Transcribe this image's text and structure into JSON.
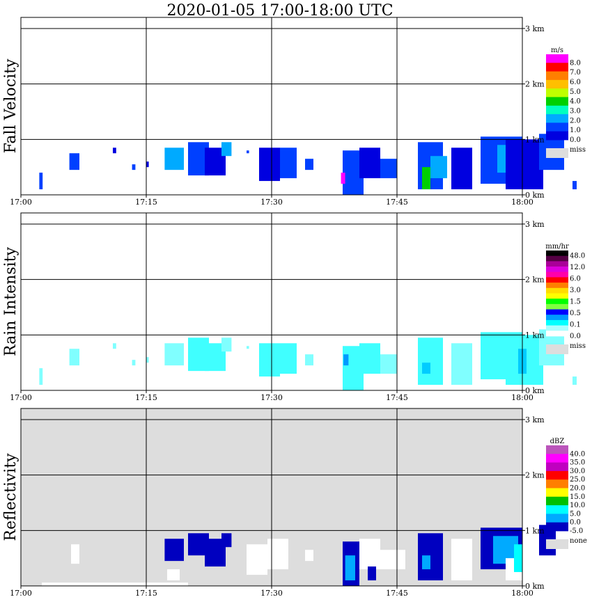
{
  "title": "2020-01-05   17:00-18:00 UTC",
  "time_ticks": [
    "17:00",
    "17:15",
    "17:30",
    "17:45",
    "18:00"
  ],
  "height_ticks": [
    "0 km",
    "1 km",
    "2 km",
    "3 km"
  ],
  "chart_data": [
    {
      "type": "heatmap",
      "ylabel": "Fall Velocity",
      "background": "white",
      "x_range": [
        "17:00",
        "18:00"
      ],
      "y_range_km": [
        0,
        3.0
      ],
      "grid": true,
      "legend": {
        "unit": "m/s",
        "labels": [
          "8.0",
          "7.0",
          "6.0",
          "5.0",
          "4.0",
          "3.0",
          "2.0",
          "1.0",
          "0.0"
        ],
        "colors": [
          "#ff00ff",
          "#ff0000",
          "#ff7f00",
          "#ffbf00",
          "#c0ff00",
          "#00d000",
          "#00ffc0",
          "#00aaff",
          "#0040ff",
          "#0000e0"
        ],
        "miss_label": "miss",
        "miss_color": "#dddddd"
      },
      "echoes": [
        {
          "t0": 2.2,
          "t1": 2.6,
          "h0": 0.1,
          "h1": 0.4,
          "color": "#0040ff"
        },
        {
          "t0": 5.8,
          "t1": 7.0,
          "h0": 0.45,
          "h1": 0.75,
          "color": "#0040ff"
        },
        {
          "t0": 11.0,
          "t1": 11.4,
          "h0": 0.75,
          "h1": 0.85,
          "color": "#0000e0"
        },
        {
          "t0": 13.3,
          "t1": 13.7,
          "h0": 0.45,
          "h1": 0.55,
          "color": "#0040ff"
        },
        {
          "t0": 15.0,
          "t1": 15.3,
          "h0": 0.5,
          "h1": 0.6,
          "color": "#0000e0"
        },
        {
          "t0": 17.2,
          "t1": 19.5,
          "h0": 0.45,
          "h1": 0.85,
          "color": "#00aaff"
        },
        {
          "t0": 20.0,
          "t1": 22.5,
          "h0": 0.35,
          "h1": 0.95,
          "color": "#0040ff"
        },
        {
          "t0": 22.0,
          "t1": 24.5,
          "h0": 0.35,
          "h1": 0.85,
          "color": "#0000e0"
        },
        {
          "t0": 24.0,
          "t1": 25.2,
          "h0": 0.7,
          "h1": 0.95,
          "color": "#00aaff"
        },
        {
          "t0": 27.0,
          "t1": 27.3,
          "h0": 0.75,
          "h1": 0.8,
          "color": "#0040ff"
        },
        {
          "t0": 28.5,
          "t1": 31.0,
          "h0": 0.25,
          "h1": 0.85,
          "color": "#0000e0"
        },
        {
          "t0": 31.0,
          "t1": 33.0,
          "h0": 0.3,
          "h1": 0.85,
          "color": "#0040ff"
        },
        {
          "t0": 34.0,
          "t1": 35.0,
          "h0": 0.45,
          "h1": 0.65,
          "color": "#0040ff"
        },
        {
          "t0": 38.5,
          "t1": 41.0,
          "h0": 0.0,
          "h1": 0.8,
          "color": "#0040ff"
        },
        {
          "t0": 38.3,
          "t1": 38.8,
          "h0": 0.2,
          "h1": 0.4,
          "color": "#ff00ff"
        },
        {
          "t0": 40.5,
          "t1": 43.0,
          "h0": 0.3,
          "h1": 0.85,
          "color": "#0000e0"
        },
        {
          "t0": 43.0,
          "t1": 45.0,
          "h0": 0.3,
          "h1": 0.65,
          "color": "#0040ff"
        },
        {
          "t0": 47.5,
          "t1": 50.5,
          "h0": 0.1,
          "h1": 0.95,
          "color": "#0040ff"
        },
        {
          "t0": 48.0,
          "t1": 49.0,
          "h0": 0.1,
          "h1": 0.5,
          "color": "#00d000"
        },
        {
          "t0": 49.0,
          "t1": 51.0,
          "h0": 0.3,
          "h1": 0.7,
          "color": "#00aaff"
        },
        {
          "t0": 51.5,
          "t1": 54.0,
          "h0": 0.1,
          "h1": 0.85,
          "color": "#0000e0"
        },
        {
          "t0": 55.0,
          "t1": 60.0,
          "h0": 0.2,
          "h1": 1.05,
          "color": "#0040ff"
        },
        {
          "t0": 57.0,
          "t1": 59.0,
          "h0": 0.4,
          "h1": 0.9,
          "color": "#00aaff"
        },
        {
          "t0": 58.0,
          "t1": 62.5,
          "h0": 0.1,
          "h1": 1.0,
          "color": "#0000e0"
        },
        {
          "t0": 62.0,
          "t1": 65.0,
          "h0": 0.45,
          "h1": 1.1,
          "color": "#0040ff"
        },
        {
          "t0": 66.0,
          "t1": 66.5,
          "h0": 0.1,
          "h1": 0.25,
          "color": "#0040ff"
        },
        {
          "t0": 71.5,
          "t1": 72.0,
          "h0": 0.45,
          "h1": 0.55,
          "color": "#00aaff"
        },
        {
          "t0": 74.5,
          "t1": 75.2,
          "h0": 0.05,
          "h1": 0.6,
          "color": "#0040ff"
        }
      ]
    },
    {
      "type": "heatmap",
      "ylabel": "Rain Intensity",
      "background": "white",
      "x_range": [
        "17:00",
        "18:00"
      ],
      "y_range_km": [
        0,
        3.0
      ],
      "grid": true,
      "legend": {
        "unit": "mm/hr",
        "labels": [
          "48.0",
          "12.0",
          "6.0",
          "3.0",
          "1.5",
          "0.5",
          "0.1",
          "0.0"
        ],
        "colors": [
          "#000000",
          "#550044",
          "#aa0099",
          "#dd00dd",
          "#ff00aa",
          "#ff0000",
          "#ff7f00",
          "#ffdd00",
          "#ffff00",
          "#00ff00",
          "#80ff40",
          "#0000ff",
          "#0099ff",
          "#00ffff",
          "#aaffff",
          "#ffffff"
        ],
        "miss_label": "miss",
        "miss_color": "#dddddd"
      },
      "echoes": [
        {
          "t0": 2.2,
          "t1": 2.6,
          "h0": 0.1,
          "h1": 0.4,
          "color": "#80ffff"
        },
        {
          "t0": 5.8,
          "t1": 7.0,
          "h0": 0.45,
          "h1": 0.75,
          "color": "#80ffff"
        },
        {
          "t0": 11.0,
          "t1": 11.4,
          "h0": 0.75,
          "h1": 0.85,
          "color": "#80ffff"
        },
        {
          "t0": 13.3,
          "t1": 13.7,
          "h0": 0.45,
          "h1": 0.55,
          "color": "#80ffff"
        },
        {
          "t0": 15.0,
          "t1": 15.3,
          "h0": 0.5,
          "h1": 0.6,
          "color": "#80ffff"
        },
        {
          "t0": 17.2,
          "t1": 19.5,
          "h0": 0.45,
          "h1": 0.85,
          "color": "#80ffff"
        },
        {
          "t0": 20.0,
          "t1": 22.5,
          "h0": 0.35,
          "h1": 0.95,
          "color": "#40ffff"
        },
        {
          "t0": 22.0,
          "t1": 24.5,
          "h0": 0.35,
          "h1": 0.85,
          "color": "#40ffff"
        },
        {
          "t0": 24.0,
          "t1": 25.2,
          "h0": 0.7,
          "h1": 0.95,
          "color": "#80ffff"
        },
        {
          "t0": 27.0,
          "t1": 27.3,
          "h0": 0.75,
          "h1": 0.8,
          "color": "#80ffff"
        },
        {
          "t0": 28.5,
          "t1": 31.0,
          "h0": 0.25,
          "h1": 0.85,
          "color": "#40ffff"
        },
        {
          "t0": 31.0,
          "t1": 33.0,
          "h0": 0.3,
          "h1": 0.85,
          "color": "#40ffff"
        },
        {
          "t0": 34.0,
          "t1": 35.0,
          "h0": 0.45,
          "h1": 0.65,
          "color": "#80ffff"
        },
        {
          "t0": 38.5,
          "t1": 41.0,
          "h0": 0.0,
          "h1": 0.8,
          "color": "#40ffff"
        },
        {
          "t0": 38.6,
          "t1": 39.2,
          "h0": 0.45,
          "h1": 0.65,
          "color": "#0099ff"
        },
        {
          "t0": 40.5,
          "t1": 43.0,
          "h0": 0.3,
          "h1": 0.85,
          "color": "#40ffff"
        },
        {
          "t0": 43.0,
          "t1": 45.0,
          "h0": 0.3,
          "h1": 0.65,
          "color": "#80ffff"
        },
        {
          "t0": 47.5,
          "t1": 50.5,
          "h0": 0.1,
          "h1": 0.95,
          "color": "#40ffff"
        },
        {
          "t0": 48.0,
          "t1": 49.0,
          "h0": 0.3,
          "h1": 0.5,
          "color": "#00ccff"
        },
        {
          "t0": 51.5,
          "t1": 54.0,
          "h0": 0.1,
          "h1": 0.85,
          "color": "#80ffff"
        },
        {
          "t0": 55.0,
          "t1": 60.0,
          "h0": 0.2,
          "h1": 1.05,
          "color": "#40ffff"
        },
        {
          "t0": 58.0,
          "t1": 62.5,
          "h0": 0.1,
          "h1": 1.0,
          "color": "#40ffff"
        },
        {
          "t0": 59.5,
          "t1": 60.5,
          "h0": 0.3,
          "h1": 0.75,
          "color": "#00ccff"
        },
        {
          "t0": 62.0,
          "t1": 65.0,
          "h0": 0.45,
          "h1": 1.1,
          "color": "#80ffff"
        },
        {
          "t0": 66.0,
          "t1": 66.5,
          "h0": 0.1,
          "h1": 0.25,
          "color": "#80ffff"
        },
        {
          "t0": 71.5,
          "t1": 72.0,
          "h0": 0.45,
          "h1": 0.55,
          "color": "#80ffff"
        },
        {
          "t0": 74.5,
          "t1": 75.2,
          "h0": 0.05,
          "h1": 0.6,
          "color": "#80ffff"
        }
      ]
    },
    {
      "type": "heatmap",
      "ylabel": "Reflectivity",
      "background": "grey",
      "x_range": [
        "17:00",
        "18:00"
      ],
      "y_range_km": [
        0,
        3.0
      ],
      "grid": true,
      "legend": {
        "unit": "dBZ",
        "labels": [
          "40.0",
          "35.0",
          "30.0",
          "25.0",
          "20.0",
          "15.0",
          "10.0",
          "5.0",
          "0.0",
          "-5.0"
        ],
        "colors": [
          "#bb55bb",
          "#ff00ff",
          "#c000c0",
          "#ff0000",
          "#ff7f00",
          "#ffff00",
          "#00c000",
          "#00ffff",
          "#00aaff",
          "#0000c0"
        ],
        "miss_label": "none",
        "miss_color": "#dddddd"
      },
      "echoes": [
        {
          "t0": 2.5,
          "t1": 20.0,
          "h0": 0.0,
          "h1": 0.06,
          "color": "#ffffff"
        },
        {
          "t0": 6.0,
          "t1": 7.0,
          "h0": 0.4,
          "h1": 0.75,
          "color": "#ffffff"
        },
        {
          "t0": 17.5,
          "t1": 19.0,
          "h0": 0.1,
          "h1": 0.3,
          "color": "#ffffff"
        },
        {
          "t0": 17.2,
          "t1": 19.5,
          "h0": 0.45,
          "h1": 0.85,
          "color": "#0000c0"
        },
        {
          "t0": 20.0,
          "t1": 22.5,
          "h0": 0.55,
          "h1": 0.95,
          "color": "#0000c0"
        },
        {
          "t0": 22.0,
          "t1": 24.5,
          "h0": 0.35,
          "h1": 0.85,
          "color": "#0000c0"
        },
        {
          "t0": 24.0,
          "t1": 25.2,
          "h0": 0.7,
          "h1": 0.95,
          "color": "#0000c0"
        },
        {
          "t0": 27.0,
          "t1": 29.5,
          "h0": 0.2,
          "h1": 0.75,
          "color": "#ffffff"
        },
        {
          "t0": 29.5,
          "t1": 32.0,
          "h0": 0.3,
          "h1": 0.85,
          "color": "#ffffff"
        },
        {
          "t0": 34.0,
          "t1": 35.0,
          "h0": 0.45,
          "h1": 0.65,
          "color": "#ffffff"
        },
        {
          "t0": 38.5,
          "t1": 40.5,
          "h0": 0.0,
          "h1": 0.8,
          "color": "#0000c0"
        },
        {
          "t0": 38.8,
          "t1": 40.0,
          "h0": 0.1,
          "h1": 0.55,
          "color": "#00aaff"
        },
        {
          "t0": 40.5,
          "t1": 43.0,
          "h0": 0.3,
          "h1": 0.85,
          "color": "#ffffff"
        },
        {
          "t0": 41.5,
          "t1": 42.5,
          "h0": 0.1,
          "h1": 0.35,
          "color": "#0000c0"
        },
        {
          "t0": 43.0,
          "t1": 46.0,
          "h0": 0.3,
          "h1": 0.65,
          "color": "#ffffff"
        },
        {
          "t0": 47.5,
          "t1": 50.5,
          "h0": 0.1,
          "h1": 0.95,
          "color": "#0000c0"
        },
        {
          "t0": 48.0,
          "t1": 49.0,
          "h0": 0.3,
          "h1": 0.55,
          "color": "#00aaff"
        },
        {
          "t0": 51.5,
          "t1": 54.0,
          "h0": 0.1,
          "h1": 0.85,
          "color": "#ffffff"
        },
        {
          "t0": 55.0,
          "t1": 60.0,
          "h0": 0.3,
          "h1": 1.05,
          "color": "#0000c0"
        },
        {
          "t0": 56.5,
          "t1": 59.5,
          "h0": 0.4,
          "h1": 0.9,
          "color": "#00aaff"
        },
        {
          "t0": 58.0,
          "t1": 62.5,
          "h0": 0.1,
          "h1": 0.5,
          "color": "#ffffff"
        },
        {
          "t0": 59.0,
          "t1": 60.0,
          "h0": 0.25,
          "h1": 0.75,
          "color": "#00ffff"
        },
        {
          "t0": 62.0,
          "t1": 64.0,
          "h0": 0.55,
          "h1": 1.1,
          "color": "#0000c0"
        },
        {
          "t0": 66.0,
          "t1": 66.5,
          "h0": 0.1,
          "h1": 0.25,
          "color": "#ffffff"
        },
        {
          "t0": 73.0,
          "t1": 74.0,
          "h0": 0.05,
          "h1": 0.5,
          "color": "#ffffff"
        },
        {
          "t0": 74.5,
          "t1": 75.2,
          "h0": 0.0,
          "h1": 0.2,
          "color": "#0000c0"
        }
      ]
    }
  ]
}
